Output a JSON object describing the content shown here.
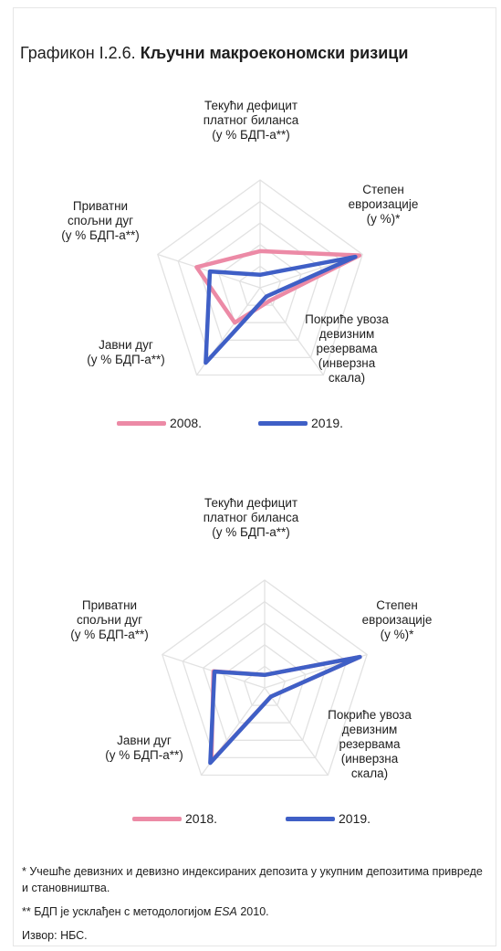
{
  "header": {
    "prefix": "Графикон I.2.6.",
    "title": "Кључни макроекономски ризици"
  },
  "colors": {
    "series_a": "#ec8aa6",
    "series_b": "#3f5fc6",
    "grid": "#e2e2e2"
  },
  "chart_data": [
    {
      "type": "radar",
      "axes": [
        "Текући дефицит\nплатног биланса\n(у % БДП-а**)",
        "Степен\nевроизације\n(у %)*",
        "Покриће увоза\nдевизним\nрезервама\n(инверзна\nскала)",
        "Јавни дуг\n(у % БДП-а**)",
        "Приватни\nспољни дуг\n(у % БДП-а**)"
      ],
      "rings": 5,
      "range": [
        0,
        1
      ],
      "legend_position": "bottom",
      "series": [
        {
          "name": "2008.",
          "values": [
            0.34,
            0.97,
            0.15,
            0.4,
            0.62
          ]
        },
        {
          "name": "2019.",
          "values": [
            0.12,
            0.93,
            0.1,
            0.86,
            0.49
          ]
        }
      ]
    },
    {
      "type": "radar",
      "axes": [
        "Текући дефицит\nплатног биланса\n(у % БДП-а**)",
        "Степен\nевроизације\n(у %)*",
        "Покриће увоза\nдевизним\nрезервама\n(инверзна\nскала)",
        "Јавни дуг\n(у % БДП-а**)",
        "Приватни\nспољни дуг\n(у % БДП-а**)"
      ],
      "rings": 5,
      "range": [
        0,
        1
      ],
      "legend_position": "bottom",
      "series": [
        {
          "name": "2018.",
          "values": [
            0.12,
            0.93,
            0.1,
            0.84,
            0.5
          ]
        },
        {
          "name": "2019.",
          "values": [
            0.12,
            0.93,
            0.1,
            0.86,
            0.49
          ]
        }
      ]
    }
  ],
  "footnotes": {
    "note1": "* Учешће девизних и девизно индексираних депозита у укупним депозитима привреде и становништва.",
    "note2_a": "** БДП је усклађен с методологијом ",
    "note2_b": "ESA",
    "note2_c": " 2010.",
    "source": "Извор: НБС."
  }
}
